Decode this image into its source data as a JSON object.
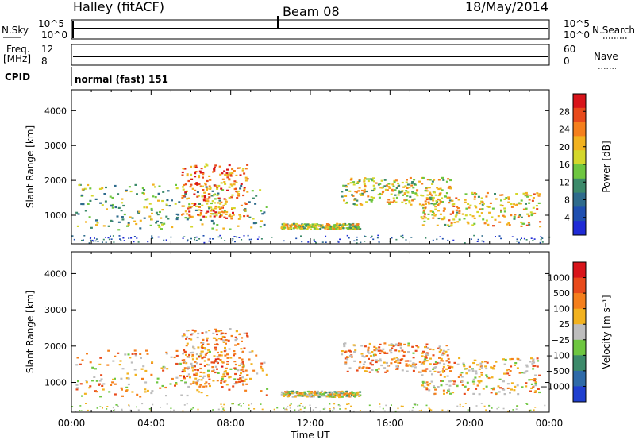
{
  "header": {
    "station": "Halley (fitACF)",
    "beam": "Beam 08",
    "date": "18/May/2014"
  },
  "status_panels": {
    "nsky_label": "N.Sky",
    "nsky_ticks": [
      "10^5",
      "10^0"
    ],
    "nsearch_label": "N.Search",
    "nsearch_ticks": [
      "10^5",
      "10^0"
    ],
    "freq_label_line1": "Freq.",
    "freq_label_line2": "[MHz]",
    "freq_ticks": [
      "12",
      "8"
    ],
    "nave_label": "Nave",
    "nave_ticks": [
      "60",
      "0"
    ],
    "cpid_label": "CPID",
    "cpid_value": "normal (fast) 151"
  },
  "colors": {
    "power_scale": [
      "#1f2bd6",
      "#1f4fb0",
      "#2e6b8c",
      "#3c8a6a",
      "#6ec640",
      "#d4d72b",
      "#f2b21f",
      "#f57f1c",
      "#e84a1b",
      "#d8141a"
    ],
    "velocity_scale": [
      "#1f3fcf",
      "#2e6aa8",
      "#3c8a6a",
      "#6ec640",
      "#bdbdbd",
      "#f2b21f",
      "#f57f1c",
      "#e84a1b",
      "#d8141a"
    ]
  },
  "chart_data": [
    {
      "type": "heatmap",
      "title": "",
      "xlabel": "",
      "ylabel": "Slant Range [km]",
      "colorbar_label": "Power [dB]",
      "colorbar_ticks": [
        "28",
        "24",
        "20",
        "16",
        "12",
        "8",
        "4"
      ],
      "colorbar_range": [
        0,
        32
      ],
      "ylim": [
        180,
        4600
      ],
      "yticks": [
        "4000",
        "3000",
        "2000",
        "1000"
      ],
      "xlim": [
        0,
        24
      ],
      "regions": [
        {
          "t0": 0.2,
          "t1": 9.8,
          "r_low": 600,
          "r_high": 1900,
          "level": 0.45
        },
        {
          "t0": 5.5,
          "t1": 8.8,
          "r_low": 900,
          "r_high": 2500,
          "level": 0.75
        },
        {
          "t0": 10.5,
          "t1": 14.5,
          "r_low": 620,
          "r_high": 780,
          "level": 0.55
        },
        {
          "t0": 13.5,
          "t1": 19.0,
          "r_low": 1300,
          "r_high": 2100,
          "level": 0.55
        },
        {
          "t0": 17.5,
          "t1": 23.5,
          "r_low": 700,
          "r_high": 1700,
          "level": 0.6
        }
      ]
    },
    {
      "type": "heatmap",
      "title": "",
      "xlabel": "Time UT",
      "ylabel": "Slant Range [km]",
      "colorbar_label": "Velocity [m s⁻¹]",
      "colorbar_ticks": [
        "1000",
        "500",
        "100",
        "25",
        "−25",
        "−100",
        "−500",
        "−1000"
      ],
      "colorbar_range": [
        -1200,
        1200
      ],
      "ylim": [
        180,
        4600
      ],
      "yticks": [
        "4000",
        "3000",
        "2000",
        "1000"
      ],
      "xlim": [
        0,
        24
      ],
      "xticks": [
        "00:00",
        "04:00",
        "08:00",
        "12:00",
        "16:00",
        "20:00",
        "00:00"
      ],
      "regions": [
        {
          "t0": 0.2,
          "t1": 9.8,
          "r_low": 600,
          "r_high": 1900,
          "level": 0.62
        },
        {
          "t0": 5.5,
          "t1": 8.8,
          "r_low": 900,
          "r_high": 2500,
          "level": 0.68
        },
        {
          "t0": 10.5,
          "t1": 14.5,
          "r_low": 620,
          "r_high": 780,
          "level": 0.5
        },
        {
          "t0": 13.5,
          "t1": 19.0,
          "r_low": 1300,
          "r_high": 2100,
          "level": 0.66
        },
        {
          "t0": 17.5,
          "t1": 23.5,
          "r_low": 700,
          "r_high": 1700,
          "level": 0.6
        }
      ]
    }
  ]
}
